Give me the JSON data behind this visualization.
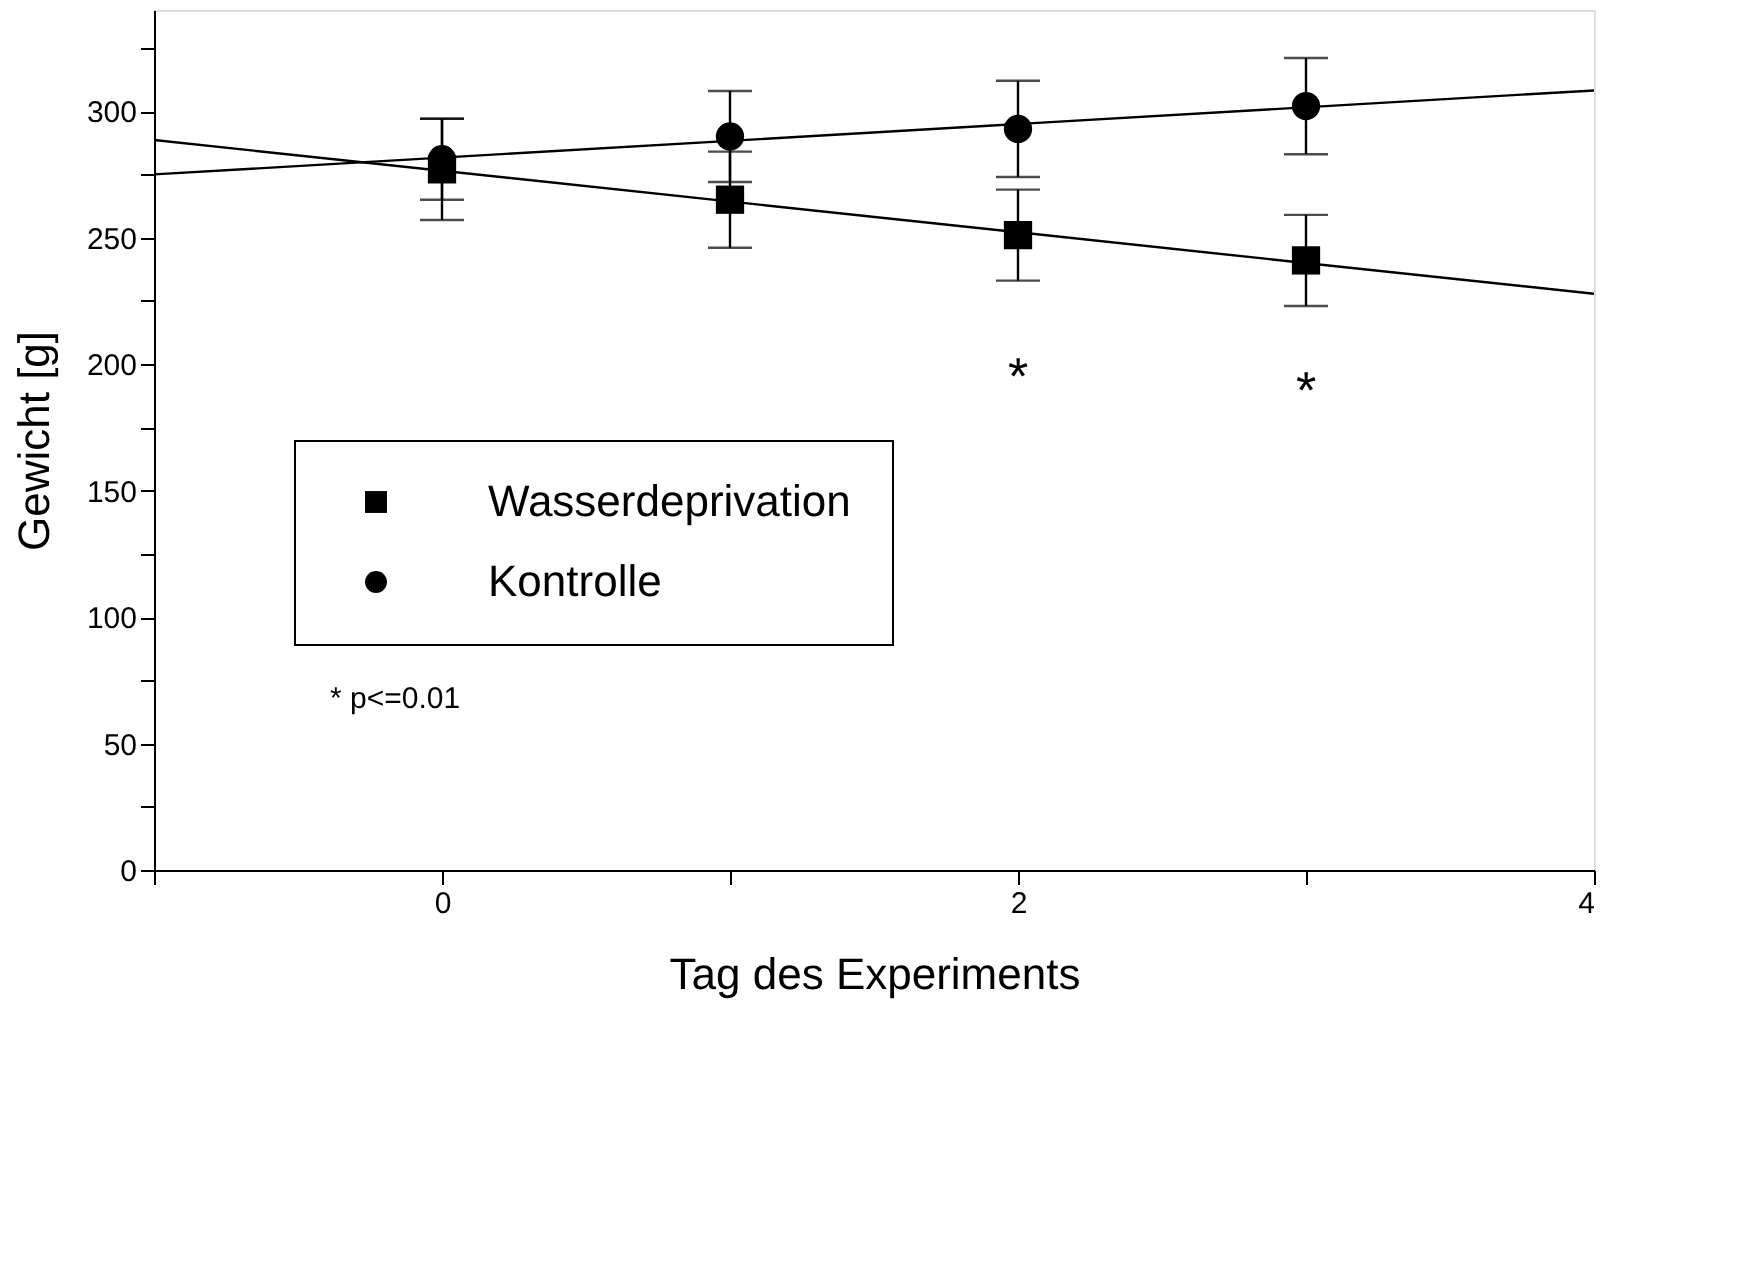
{
  "chart_data": {
    "type": "scatter",
    "xlabel": "Tag des Experiments",
    "ylabel": "Gewicht [g]",
    "xlim": [
      -1,
      4
    ],
    "ylim": [
      0,
      340
    ],
    "xticks": [
      {
        "value": -1,
        "label": null
      },
      0,
      {
        "value": 1,
        "label": null
      },
      2,
      {
        "value": 3,
        "label": null
      },
      4
    ],
    "yticks": [
      0,
      {
        "value": 25,
        "label": null
      },
      50,
      {
        "value": 75,
        "label": null
      },
      100,
      {
        "value": 125,
        "label": null
      },
      150,
      {
        "value": 175,
        "label": null
      },
      200,
      {
        "value": 225,
        "label": null
      },
      250,
      {
        "value": 275,
        "label": null
      },
      300,
      {
        "value": 325,
        "label": null
      }
    ],
    "grid": false,
    "legend": "left",
    "series": [
      {
        "name": "Wasserdeprivation",
        "marker": "square",
        "color": "#000000",
        "x": [
          0,
          1,
          2,
          3
        ],
        "values": [
          277,
          265,
          251,
          241
        ],
        "errors": [
          20,
          19,
          18,
          18
        ]
      },
      {
        "name": "Kontrolle",
        "marker": "circle",
        "color": "#000000",
        "x": [
          0,
          1,
          2,
          3
        ],
        "values": [
          281,
          290,
          293,
          302
        ],
        "errors": [
          16,
          18,
          19,
          19
        ]
      },
      {
        "type": "line",
        "color": "#000000",
        "x": [
          -1,
          4
        ],
        "values": [
          288.6,
          227.8
        ]
      },
      {
        "type": "line",
        "color": "#000000",
        "x": [
          -1,
          4
        ],
        "values": [
          275,
          308.2
        ]
      }
    ],
    "annotations": [
      "*",
      "*",
      "* p<=0.01"
    ]
  }
}
